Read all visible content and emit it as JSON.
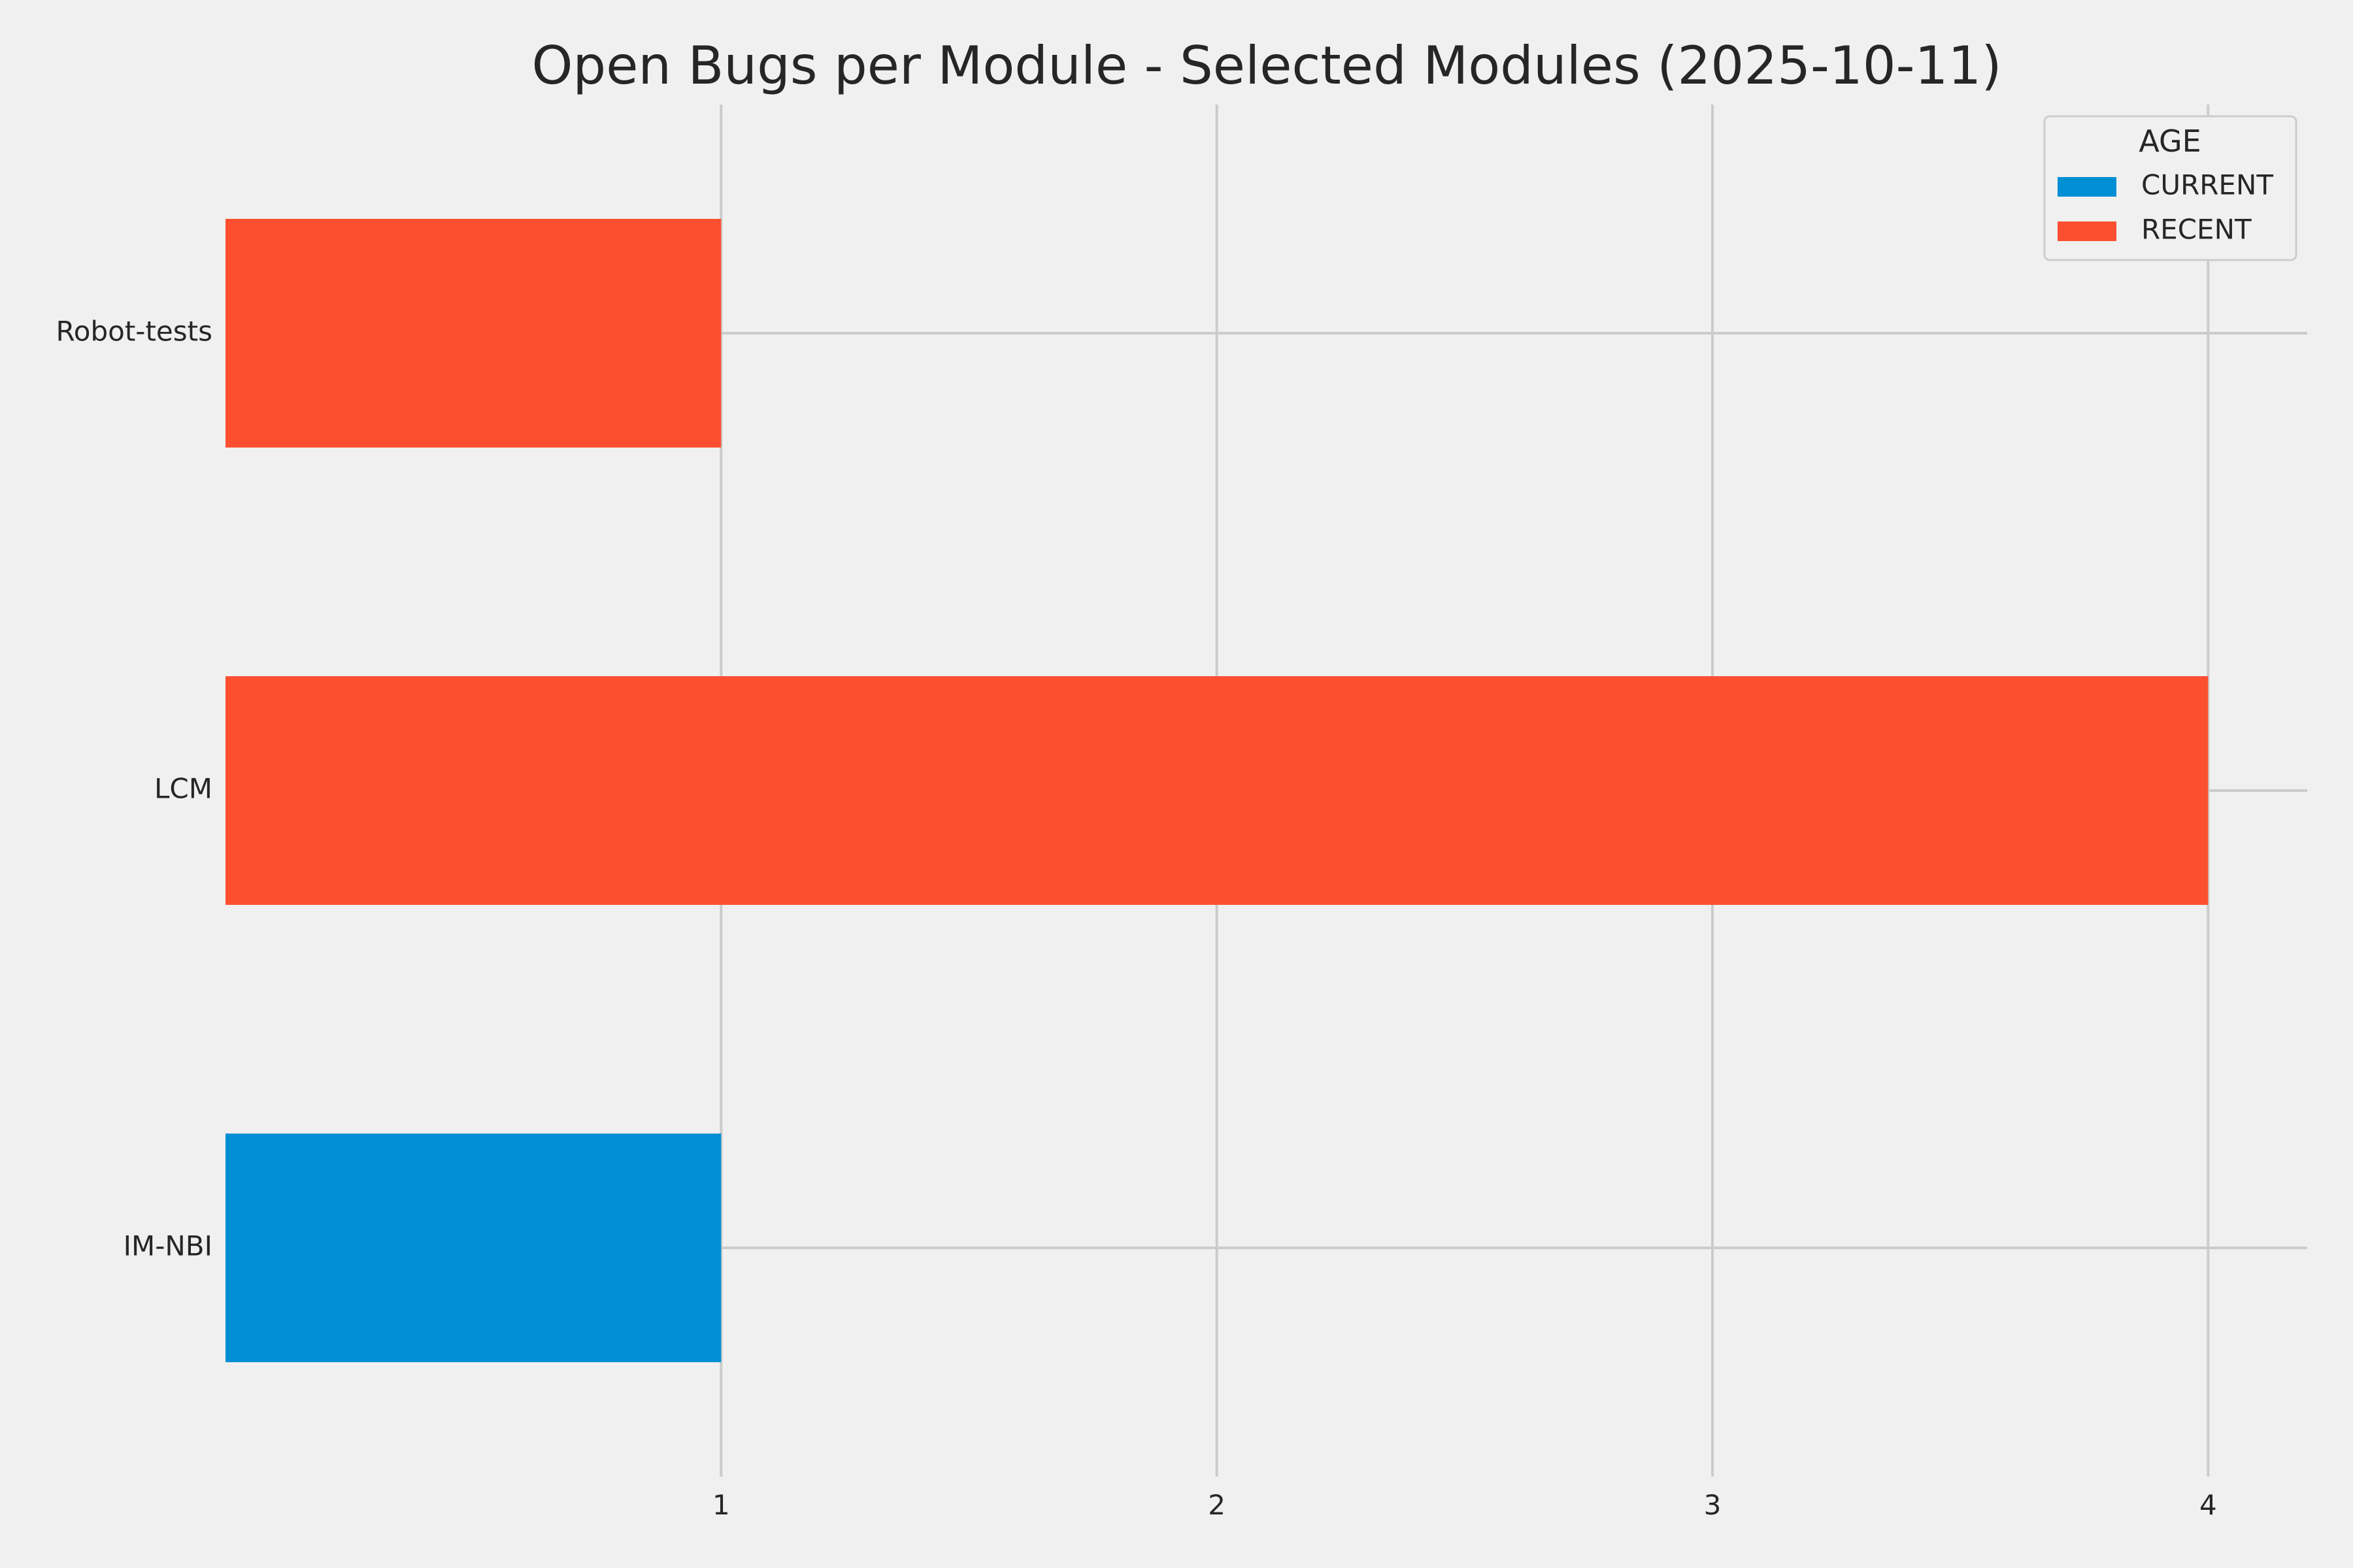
{
  "chart_data": {
    "type": "bar",
    "orientation": "horizontal",
    "stacked": true,
    "title": "Open Bugs per Module - Selected Modules (2025-10-11)",
    "xlabel": "",
    "ylabel": "",
    "categories": [
      "IM-NBI",
      "LCM",
      "Robot-tests"
    ],
    "series": [
      {
        "name": "CURRENT",
        "color": "#008fd5",
        "values": [
          1,
          0,
          0
        ]
      },
      {
        "name": "RECENT",
        "color": "#fc4f30",
        "values": [
          0,
          4,
          1
        ]
      }
    ],
    "xlim": [
      0,
      4.2
    ],
    "xticks": [
      1,
      2,
      3,
      4
    ],
    "grid": true,
    "legend": {
      "title": "AGE",
      "position": "top-right"
    }
  }
}
